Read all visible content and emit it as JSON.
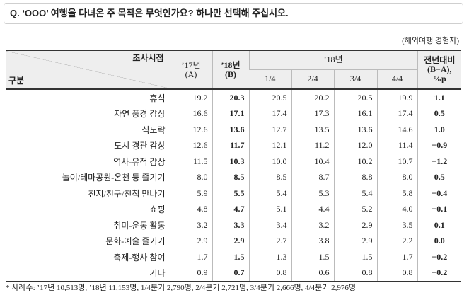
{
  "header": {
    "question": "Q. ‘OOO’ 여행을 다녀온 주 목적은 무엇인가요? 하나만 선택해 주십시오.",
    "note": "(해외여행 경험자)"
  },
  "table": {
    "corner_top": "조사시점",
    "corner_bottom": "구분",
    "columns": {
      "a": [
        "’17년",
        "(A)"
      ],
      "b": [
        "’18년",
        "(B)"
      ],
      "quarter_group": "’18년",
      "quarters": [
        "1/4",
        "2/4",
        "3/4",
        "4/4"
      ],
      "diff": [
        "전년대비",
        "(B−A),",
        "%p"
      ]
    },
    "rows": [
      [
        "휴식",
        "19.2",
        "20.3",
        "20.5",
        "20.2",
        "20.5",
        "19.9",
        "1.1"
      ],
      [
        "자연 풍경 감상",
        "16.6",
        "17.1",
        "17.4",
        "17.3",
        "16.1",
        "17.4",
        "0.5"
      ],
      [
        "식도락",
        "12.6",
        "13.6",
        "12.7",
        "13.5",
        "13.6",
        "14.6",
        "1.0"
      ],
      [
        "도시 경관 감상",
        "12.6",
        "11.7",
        "12.1",
        "11.2",
        "12.0",
        "11.4",
        "−0.9"
      ],
      [
        "역사-유적 감상",
        "11.5",
        "10.3",
        "10.0",
        "10.4",
        "10.2",
        "10.7",
        "−1.2"
      ],
      [
        "놀이/테마공원-온천 등 즐기기",
        "8.0",
        "8.5",
        "8.5",
        "8.7",
        "8.8",
        "8.0",
        "0.5"
      ],
      [
        "친지/친구/친척 만나기",
        "5.9",
        "5.5",
        "5.4",
        "5.3",
        "5.4",
        "5.8",
        "−0.4"
      ],
      [
        "쇼핑",
        "4.8",
        "4.7",
        "5.1",
        "4.4",
        "5.2",
        "4.0",
        "−0.1"
      ],
      [
        "취미-운동 활동",
        "3.2",
        "3.3",
        "3.4",
        "3.2",
        "2.9",
        "3.5",
        "0.1"
      ],
      [
        "문화-예술 즐기기",
        "2.9",
        "2.9",
        "2.7",
        "3.8",
        "2.9",
        "2.2",
        "0.0"
      ],
      [
        "축제-행사 참여",
        "1.7",
        "1.5",
        "1.3",
        "1.5",
        "1.5",
        "1.7",
        "−0.2"
      ],
      [
        "기타",
        "0.9",
        "0.7",
        "0.8",
        "0.6",
        "0.8",
        "0.8",
        "−0.2"
      ]
    ]
  },
  "footnote": "* 사례수: ’17년 10,513명, ’18년 11,153명, 1/4분기 2,790명, 2/4분기 2,721명, 3/4분기 2,666명, 4/4분기 2,976명"
}
